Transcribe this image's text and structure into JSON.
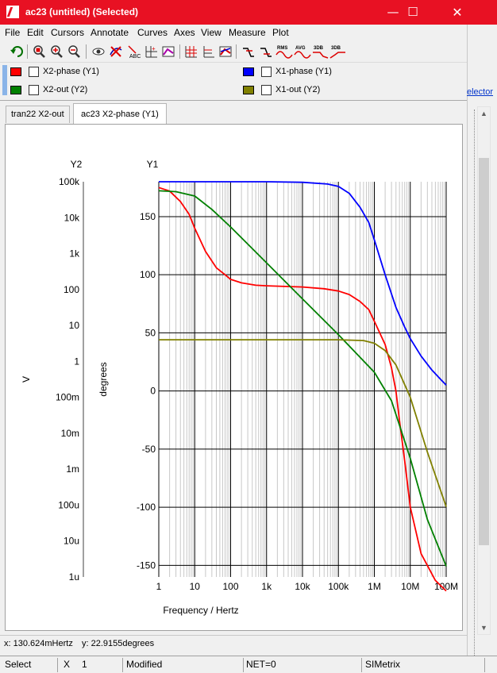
{
  "window": {
    "title": "ac23 (untitled) (Selected)",
    "min_glyph": "—",
    "max_glyph": "☐",
    "close_glyph": "✕"
  },
  "background_window": {
    "link_text": "elector"
  },
  "menu": [
    "File",
    "Edit",
    "Cursors",
    "Annotate",
    "Curves",
    "Axes",
    "View",
    "Measure",
    "Plot"
  ],
  "toolbar": {
    "icons": [
      "undo-icon",
      "zoom-full-icon",
      "zoom-in-icon",
      "zoom-out-icon",
      "view-icon",
      "delete-curve-icon",
      "label-icon",
      "add-axis-icon",
      "curve-settings-icon",
      "grid-icon",
      "axis-icon",
      "color-icon",
      "rise-icon",
      "fall-icon",
      "rms-icon",
      "avg-icon",
      "3db-icon",
      "3db-alt-icon"
    ],
    "labels": {
      "rms": "RMS",
      "avg": "AVG",
      "db1": "3DB",
      "db2": "3DB"
    }
  },
  "legend": [
    {
      "label": "X2-phase (Y1)",
      "color": "#ff0000"
    },
    {
      "label": "X1-phase (Y1)",
      "color": "#0000ff"
    },
    {
      "label": "X2-out (Y2)",
      "color": "#008000"
    },
    {
      "label": "X1-out (Y2)",
      "color": "#808000"
    }
  ],
  "tabs": [
    {
      "label": "tran22 X2-out",
      "active": false
    },
    {
      "label": "ac23 X2-phase (Y1)",
      "active": true
    }
  ],
  "readout": {
    "x": "x: 130.624mHertz",
    "y": "y: 22.9155degrees"
  },
  "status": {
    "mode": "Select",
    "x_label": "X",
    "x_value": "1",
    "modified": "Modified",
    "net": "NET=0",
    "app": "SIMetrix"
  },
  "chart_data": {
    "type": "line",
    "xlabel": "Frequency / Hertz",
    "x_scale": "log",
    "xlim": [
      1,
      100000000
    ],
    "x_ticks": [
      {
        "value": 1,
        "label": "1"
      },
      {
        "value": 10,
        "label": "10"
      },
      {
        "value": 100,
        "label": "100"
      },
      {
        "value": 1000,
        "label": "1k"
      },
      {
        "value": 10000,
        "label": "10k"
      },
      {
        "value": 100000,
        "label": "100k"
      },
      {
        "value": 1000000,
        "label": "1M"
      },
      {
        "value": 10000000,
        "label": "10M"
      },
      {
        "value": 100000000,
        "label": "100M"
      }
    ],
    "y1": {
      "title": "Y1",
      "label": "degrees",
      "ylim": [
        -160,
        180
      ],
      "ticks": [
        150,
        100,
        50,
        0,
        -50,
        -100,
        -150
      ]
    },
    "y2": {
      "title": "Y2",
      "label": "V",
      "scale": "log",
      "ylim": [
        1e-06,
        100000
      ],
      "ticks": [
        {
          "value": 100000,
          "label": "100k"
        },
        {
          "value": 10000,
          "label": "10k"
        },
        {
          "value": 1000,
          "label": "1k"
        },
        {
          "value": 100,
          "label": "100"
        },
        {
          "value": 10,
          "label": "10"
        },
        {
          "value": 1,
          "label": "1"
        },
        {
          "value": 0.1,
          "label": "100m"
        },
        {
          "value": 0.01,
          "label": "10m"
        },
        {
          "value": 0.001,
          "label": "1m"
        },
        {
          "value": 0.0001,
          "label": "100u"
        },
        {
          "value": 1e-05,
          "label": "10u"
        },
        {
          "value": 1e-06,
          "label": "1u"
        }
      ]
    },
    "grid": true,
    "series": [
      {
        "name": "X1-phase (Y1)",
        "color": "#0000ff",
        "axis": "y1",
        "x": [
          1,
          10,
          100,
          1000,
          10000,
          50000,
          100000,
          200000,
          400000,
          700000,
          1000000,
          2000000,
          4000000,
          7000000,
          10000000,
          20000000,
          40000000,
          70000000,
          100000000
        ],
        "y": [
          180,
          180,
          180,
          180,
          179.5,
          178,
          176,
          170,
          158,
          145,
          130,
          100,
          72,
          55,
          45,
          30,
          18,
          10,
          5
        ]
      },
      {
        "name": "X2-phase (Y1)",
        "color": "#ff0000",
        "axis": "y1",
        "x": [
          1,
          2,
          4,
          7,
          10,
          20,
          40,
          70,
          100,
          200,
          500,
          1000,
          10000,
          40000,
          100000,
          200000,
          400000,
          700000,
          1000000,
          2000000,
          3000000,
          4000000,
          5000000,
          7000000,
          10000000,
          20000000,
          50000000,
          100000000
        ],
        "y": [
          175,
          172,
          163,
          152,
          140,
          120,
          106,
          100,
          96,
          93,
          91,
          90.5,
          89.5,
          88,
          86,
          83,
          77,
          70,
          60,
          40,
          20,
          0,
          -25,
          -60,
          -100,
          -140,
          -163,
          -172
        ]
      },
      {
        "name": "X2-out (Y2)",
        "color": "#008000",
        "axis": "y2",
        "x": [
          1,
          3,
          10,
          30,
          100,
          1000,
          10000,
          100000,
          1000000,
          3000000,
          10000000,
          30000000,
          100000000
        ],
        "y": [
          56000,
          53000,
          40000,
          17000,
          5500,
          550,
          55,
          5.5,
          0.5,
          0.08,
          0.002,
          4e-05,
          2e-06
        ]
      },
      {
        "name": "X1-out (Y2)",
        "color": "#808000",
        "axis": "y2",
        "x": [
          1,
          10,
          100,
          1000,
          10000,
          100000,
          500000,
          1000000,
          2000000,
          4000000,
          10000000,
          30000000,
          100000000
        ],
        "y": [
          4,
          4,
          4,
          4,
          4,
          4,
          3.8,
          3.2,
          2,
          0.8,
          0.1,
          0.003,
          9e-05
        ]
      }
    ]
  }
}
